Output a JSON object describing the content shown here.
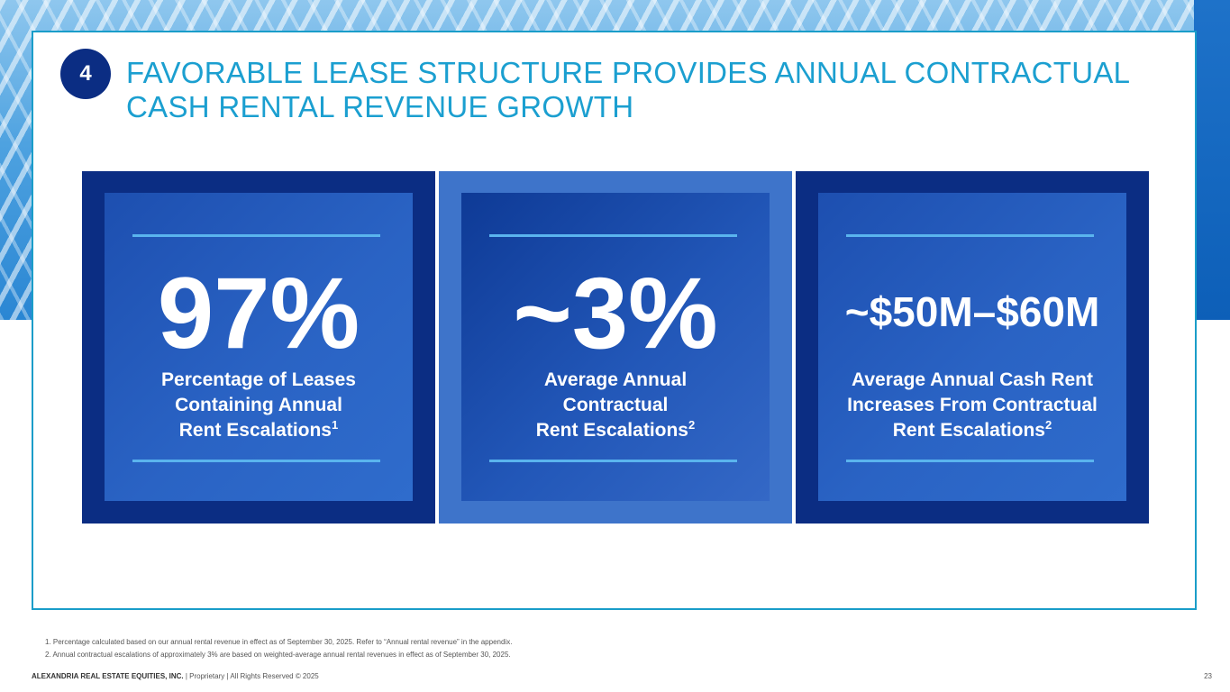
{
  "section_number": "4",
  "title_line1": "FAVORABLE LEASE STRUCTURE PROVIDES ANNUAL CONTRACTUAL",
  "title_line2": "CASH RENTAL REVENUE GROWTH",
  "cards": [
    {
      "value": "97%",
      "desc_lines": [
        "Percentage of Leases",
        "Containing Annual",
        "Rent Escalations"
      ],
      "footnote_ref": "1"
    },
    {
      "value": "~3%",
      "desc_lines": [
        "Average Annual",
        "Contractual",
        "Rent Escalations"
      ],
      "footnote_ref": "2"
    },
    {
      "value": "~$50M–$60M",
      "desc_lines": [
        "Average Annual Cash Rent",
        "Increases From Contractual",
        "Rent Escalations"
      ],
      "footnote_ref": "2"
    }
  ],
  "footnotes": [
    "1.   Percentage calculated based on our annual rental revenue in effect as of September 30, 2025. Refer to “Annual rental revenue” in the appendix.",
    "2.   Annual contractual escalations of approximately 3% are based on weighted-average annual rental revenues in effect as of September 30, 2025."
  ],
  "footer": {
    "company": "ALEXANDRIA REAL ESTATE EQUITIES, INC.",
    "rights": " | Proprietary | All Rights Reserved © 2025"
  },
  "page_number": "23",
  "colors": {
    "title": "#1b9fd0",
    "badge": "#0b2d83",
    "card_dark": "#0b2d83",
    "card_light": "#3e74ca",
    "rule": "#5ab4ee",
    "panel_border": "#1a9dc9"
  }
}
